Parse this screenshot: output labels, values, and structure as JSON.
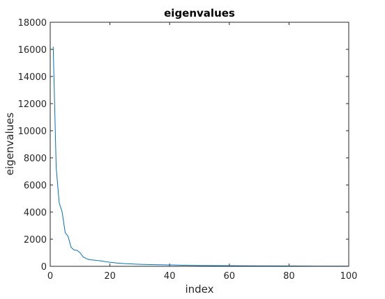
{
  "chart_data": {
    "type": "line",
    "title": "eigenvalues",
    "xlabel": "index",
    "ylabel": "eigenvalues",
    "xlim": [
      0,
      100
    ],
    "ylim": [
      0,
      18000
    ],
    "xticks": [
      0,
      20,
      40,
      60,
      80,
      100
    ],
    "yticks": [
      0,
      2000,
      4000,
      6000,
      8000,
      10000,
      12000,
      14000,
      16000,
      18000
    ],
    "grid": false,
    "series": [
      {
        "color": "#0072bd",
        "x": [
          1,
          2,
          3,
          4,
          5,
          6,
          7,
          8,
          9,
          10,
          11,
          12,
          13,
          14,
          15,
          16,
          17,
          18,
          19,
          20,
          22,
          25,
          28,
          30,
          35,
          40,
          45,
          50,
          60,
          70,
          80,
          90,
          100
        ],
        "y": [
          16200,
          7300,
          4700,
          4000,
          2500,
          2200,
          1400,
          1200,
          1180,
          1000,
          700,
          580,
          500,
          470,
          450,
          420,
          400,
          360,
          330,
          300,
          250,
          200,
          170,
          150,
          120,
          100,
          80,
          60,
          45,
          35,
          25,
          15,
          10
        ]
      }
    ]
  }
}
